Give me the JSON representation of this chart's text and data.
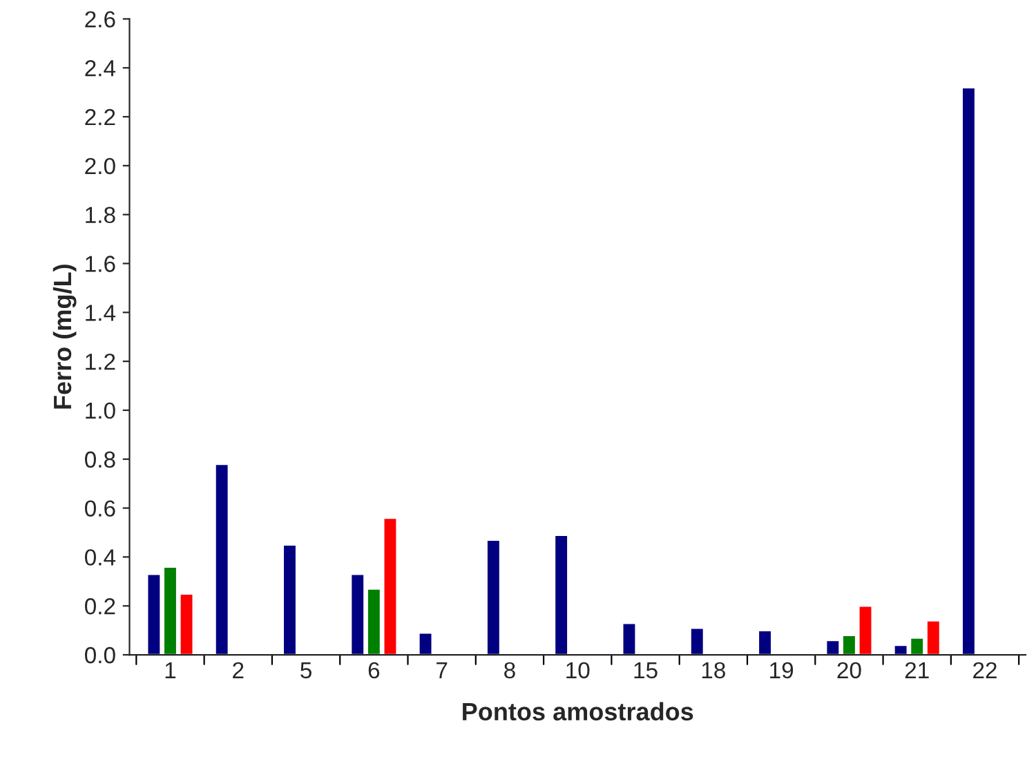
{
  "chart_data": {
    "type": "bar",
    "xlabel": "Pontos amostrados",
    "ylabel": "Ferro (mg/L)",
    "categories": [
      "1",
      "2",
      "5",
      "6",
      "7",
      "8",
      "10",
      "15",
      "18",
      "19",
      "20",
      "21",
      "22"
    ],
    "series": [
      {
        "color": "#000080",
        "values": [
          0.33,
          0.78,
          0.45,
          0.33,
          0.09,
          0.47,
          0.49,
          0.13,
          0.11,
          0.1,
          0.06,
          0.04,
          2.32
        ]
      },
      {
        "color": "#008000",
        "values": [
          0.36,
          null,
          null,
          0.27,
          null,
          null,
          null,
          null,
          null,
          null,
          0.08,
          0.07,
          null
        ]
      },
      {
        "color": "#ff0000",
        "values": [
          0.25,
          null,
          null,
          0.56,
          null,
          null,
          null,
          null,
          null,
          null,
          0.2,
          0.14,
          null
        ]
      }
    ],
    "ylim": [
      0,
      2.6
    ],
    "yticks": [
      {
        "value": 0,
        "label": "0.0"
      },
      {
        "value": 0.2,
        "label": "0.2"
      },
      {
        "value": 0.4,
        "label": "0.4"
      },
      {
        "value": 0.6,
        "label": "0.6"
      },
      {
        "value": 0.8,
        "label": "0.8"
      },
      {
        "value": 1.0,
        "label": "1.0"
      },
      {
        "value": 1.2,
        "label": "1.2"
      },
      {
        "value": 1.4,
        "label": "1.4"
      },
      {
        "value": 1.6,
        "label": "1.6"
      },
      {
        "value": 1.8,
        "label": "1.8"
      },
      {
        "value": 2.0,
        "label": "2.0"
      },
      {
        "value": 2.2,
        "label": "2.2"
      },
      {
        "value": 2.4,
        "label": "2.4"
      },
      {
        "value": 2.6,
        "label": "2.6"
      }
    ],
    "grid": false
  }
}
